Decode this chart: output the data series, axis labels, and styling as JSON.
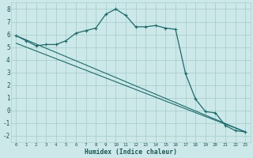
{
  "xlabel": "Humidex (Indice chaleur)",
  "bg_color": "#cce8e8",
  "grid_color": "#aacece",
  "line_color": "#1a6b6b",
  "xlim": [
    -0.5,
    23.5
  ],
  "ylim": [
    -2.5,
    8.5
  ],
  "xticks": [
    0,
    1,
    2,
    3,
    4,
    5,
    6,
    7,
    8,
    9,
    10,
    11,
    12,
    13,
    14,
    15,
    16,
    17,
    18,
    19,
    20,
    21,
    22,
    23
  ],
  "yticks": [
    -2,
    -1,
    0,
    1,
    2,
    3,
    4,
    5,
    6,
    7,
    8
  ],
  "line1_x": [
    0,
    1,
    2,
    3,
    4,
    5,
    6,
    7,
    8,
    9,
    10,
    11,
    12,
    13,
    14,
    15,
    16,
    17,
    18,
    19,
    20,
    21,
    22,
    23
  ],
  "line1_y": [
    5.9,
    5.5,
    5.1,
    5.2,
    5.2,
    5.5,
    6.1,
    6.3,
    6.5,
    7.6,
    8.0,
    7.5,
    6.6,
    6.6,
    6.7,
    6.5,
    6.4,
    2.9,
    0.9,
    -0.1,
    -0.2,
    -1.2,
    -1.6,
    -1.7
  ],
  "line2_x": [
    0,
    23
  ],
  "line2_y": [
    5.9,
    -1.7
  ],
  "line3_x": [
    0,
    23
  ],
  "line3_y": [
    5.3,
    -1.7
  ]
}
